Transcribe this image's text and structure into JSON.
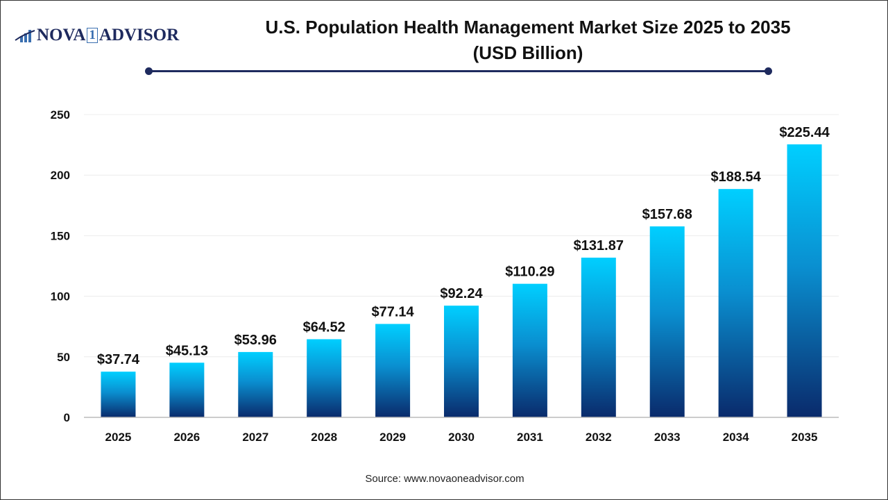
{
  "logo": {
    "text_left": "NOVA",
    "text_mid": "1",
    "text_right": "ADVISOR"
  },
  "title_line1": "U.S. Population Health Management Market Size 2025 to 2035",
  "title_line2": "(USD Billion)",
  "source": "Source: www.novaoneadvisor.com",
  "colors": {
    "bar_top": "#00cfff",
    "bar_bottom": "#0a2a6b",
    "accent": "#1e2a5e"
  },
  "chart_data": {
    "type": "bar",
    "title": "U.S. Population Health Management Market Size 2025 to 2035 (USD Billion)",
    "categories": [
      "2025",
      "2026",
      "2027",
      "2028",
      "2029",
      "2030",
      "2031",
      "2032",
      "2033",
      "2034",
      "2035"
    ],
    "values": [
      37.74,
      45.13,
      53.96,
      64.52,
      77.14,
      92.24,
      110.29,
      131.87,
      157.68,
      188.54,
      225.44
    ],
    "data_labels": [
      "$37.74",
      "$45.13",
      "$53.96",
      "$64.52",
      "$77.14",
      "$92.24",
      "$110.29",
      "$131.87",
      "$157.68",
      "$188.54",
      "$225.44"
    ],
    "yticks": [
      0,
      50,
      100,
      150,
      200,
      250
    ],
    "ylim": [
      0,
      250
    ],
    "grid": true,
    "xlabel": "",
    "ylabel": ""
  }
}
